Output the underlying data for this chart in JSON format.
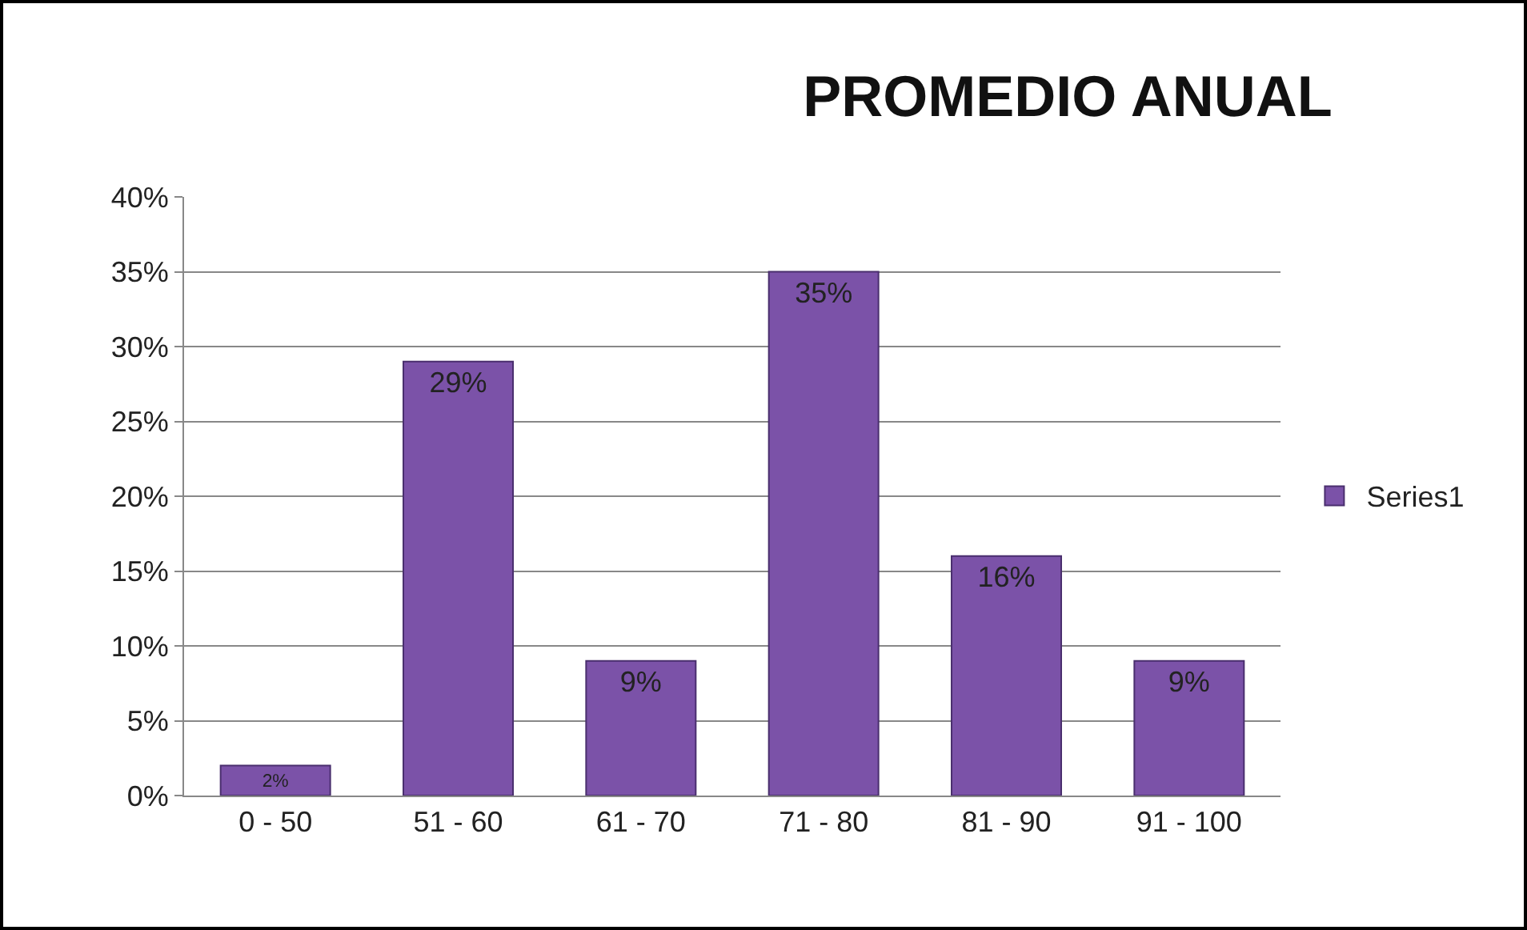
{
  "chart_data": {
    "type": "bar",
    "title": "PROMEDIO ANUAL",
    "categories": [
      "0 - 50",
      "51 - 60",
      "61 - 70",
      "71 - 80",
      "81 - 90",
      "91 - 100"
    ],
    "series": [
      {
        "name": "Series1",
        "color": "#7b52a8",
        "values": [
          2,
          29,
          9,
          35,
          16,
          9
        ],
        "value_labels": [
          "2%",
          "29%",
          "9%",
          "35%",
          "16%",
          "9%"
        ]
      }
    ],
    "ylim": [
      0,
      40
    ],
    "yticks": [
      {
        "value": 0,
        "label": "0%"
      },
      {
        "value": 5,
        "label": "5%"
      },
      {
        "value": 10,
        "label": "10%"
      },
      {
        "value": 15,
        "label": "15%"
      },
      {
        "value": 20,
        "label": "20%"
      },
      {
        "value": 25,
        "label": "25%"
      },
      {
        "value": 30,
        "label": "30%"
      },
      {
        "value": 35,
        "label": "35%"
      },
      {
        "value": 40,
        "label": "40%"
      }
    ],
    "grid": "y",
    "legend": "right"
  }
}
